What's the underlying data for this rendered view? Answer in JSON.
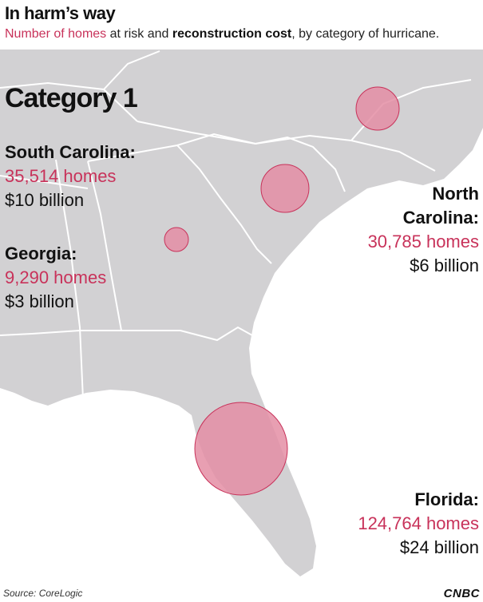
{
  "header": {
    "title": "In harm’s way",
    "subtitle_part1": "Number of homes",
    "subtitle_part2": " at risk and ",
    "subtitle_part3": "reconstruction cost",
    "subtitle_part4": ", by category of hurricane."
  },
  "category_label": "Category 1",
  "states": {
    "south_carolina": {
      "name": "South Carolina:",
      "homes": "35,514 homes",
      "cost": "$10 billion",
      "homes_value": 35514
    },
    "georgia": {
      "name": "Georgia:",
      "homes": "9,290 homes",
      "cost": "$3 billion",
      "homes_value": 9290
    },
    "north_carolina": {
      "name_line1": "North",
      "name_line2": "Carolina:",
      "homes": "30,785 homes",
      "cost": "$6 billion",
      "homes_value": 30785
    },
    "florida": {
      "name": "Florida:",
      "homes": "124,764 homes",
      "cost": "$24 billion",
      "homes_value": 124764
    }
  },
  "footer": {
    "source": "Source: CoreLogic",
    "logo": "CNBC"
  },
  "colors": {
    "land": "#d2d1d3",
    "borders": "#ffffff",
    "bubble_fill": "#e48ea4",
    "bubble_stroke": "#c8325a",
    "accent": "#c8325a"
  }
}
